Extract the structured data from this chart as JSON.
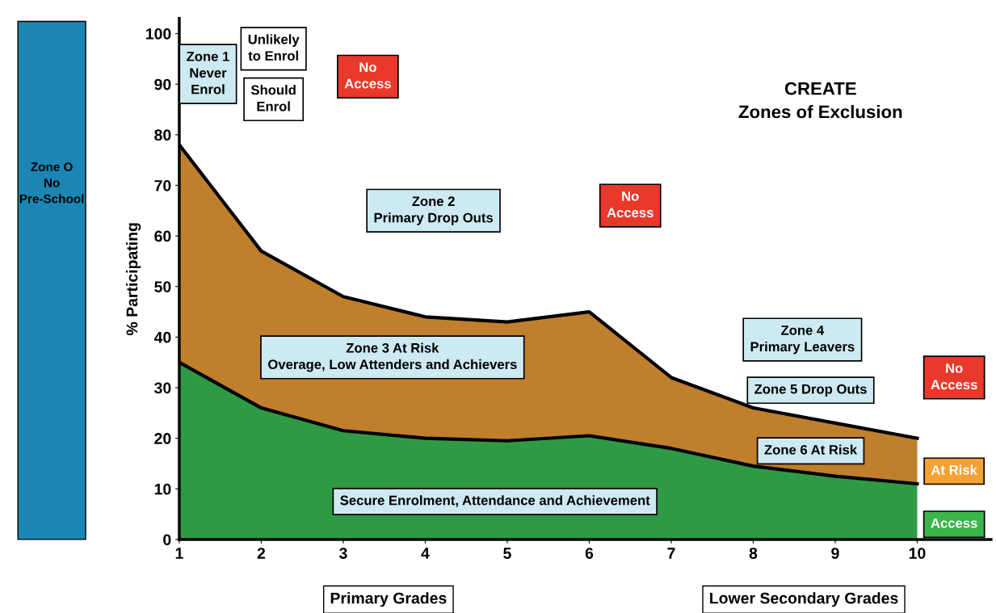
{
  "chart_data": {
    "type": "area",
    "title": "CREATE\nZones of Exclusion",
    "ylabel": "% Participating",
    "x": [
      1,
      2,
      3,
      4,
      5,
      6,
      7,
      8,
      9,
      10
    ],
    "stacked": true,
    "series": [
      {
        "color": "#2f9a45",
        "values": [
          35,
          26,
          21.5,
          20,
          19.5,
          20.5,
          18,
          14.5,
          12.5,
          11
        ]
      },
      {
        "color": "#c07f2c",
        "values": [
          43,
          31,
          26.5,
          24,
          23.5,
          24.5,
          14,
          11.5,
          10.5,
          9
        ]
      }
    ],
    "xlim": [
      1,
      10.9
    ],
    "ylim": [
      0,
      103
    ],
    "xticks": [
      1,
      2,
      3,
      4,
      5,
      6,
      7,
      8,
      9,
      10
    ],
    "yticks": [
      0,
      10,
      20,
      30,
      40,
      50,
      60,
      70,
      80,
      90,
      100
    ],
    "grid": false,
    "annotations": [
      "Zone 1\nNever\nEnrol",
      "Unlikely\nto Enrol",
      "Should\nEnrol",
      "No\nAccess",
      "Zone 2\nPrimary Drop Outs",
      "No\nAccess",
      "Zone 3 At Risk\nOverage, Low Attenders and Achievers",
      "Zone 4\nPrimary Leavers",
      "Zone 5 Drop Outs",
      "Zone 6 At Risk",
      "No\nAccess",
      "At Risk",
      "Access",
      "Secure Enrolment, Attendance and Achievement",
      "Zone O\nNo\nPre-School",
      "Primary Grades",
      "Lower Secondary Grades"
    ]
  }
}
